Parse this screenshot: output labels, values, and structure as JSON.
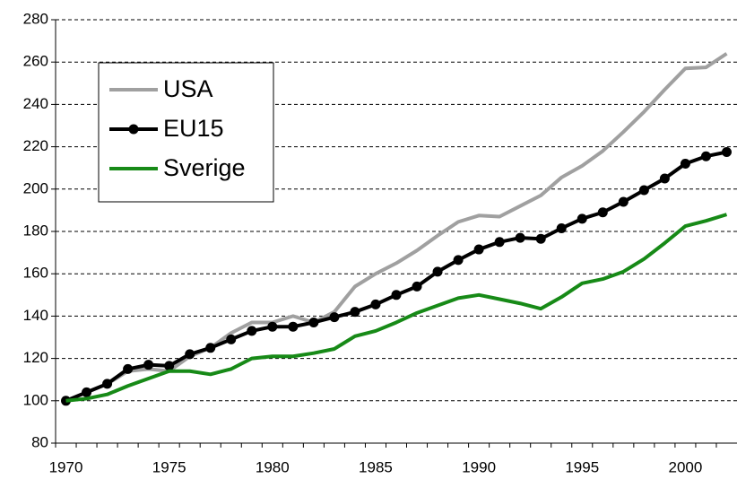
{
  "chart_data": {
    "type": "line",
    "categories": [
      "1970",
      null,
      null,
      null,
      null,
      "1975",
      null,
      null,
      null,
      null,
      "1980",
      null,
      null,
      null,
      null,
      "1985",
      null,
      null,
      null,
      null,
      "1990",
      null,
      null,
      null,
      null,
      "1995",
      null,
      null,
      null,
      null,
      "2000",
      null,
      null
    ],
    "series": [
      {
        "name": "USA",
        "color": "#a0a0a0",
        "markers": false,
        "values": [
          100,
          104,
          108,
          114,
          115,
          114,
          121,
          125,
          132,
          137,
          137,
          140,
          137,
          142,
          154,
          160,
          165,
          171,
          178,
          184.5,
          187.5,
          187,
          192,
          197,
          205.5,
          211,
          218,
          227,
          236.5,
          247,
          257,
          257.5,
          264
        ]
      },
      {
        "name": "EU15",
        "color": "#000000",
        "markers": true,
        "values": [
          100,
          104,
          108,
          115,
          117,
          116.5,
          122,
          125,
          129,
          133,
          135,
          135,
          137,
          139.5,
          142,
          145.5,
          150,
          154,
          161,
          166.5,
          171.5,
          175,
          177,
          176.5,
          181.5,
          186,
          189,
          194,
          199.5,
          205,
          212,
          215.5,
          217.5
        ]
      },
      {
        "name": "Sverige",
        "color": "#178a17",
        "markers": false,
        "values": [
          100,
          101,
          103,
          107,
          110.5,
          114,
          114,
          112.5,
          115,
          120,
          121,
          121,
          122.5,
          124.5,
          130.5,
          133,
          137,
          141.5,
          145,
          148.5,
          150,
          148,
          146,
          143.5,
          149,
          155.5,
          157.5,
          161,
          167,
          174.5,
          182.5,
          185,
          188
        ]
      }
    ],
    "ylim": [
      80,
      280
    ],
    "yticks": [
      80,
      100,
      120,
      140,
      160,
      180,
      200,
      220,
      240,
      260,
      280
    ],
    "grid": true
  }
}
